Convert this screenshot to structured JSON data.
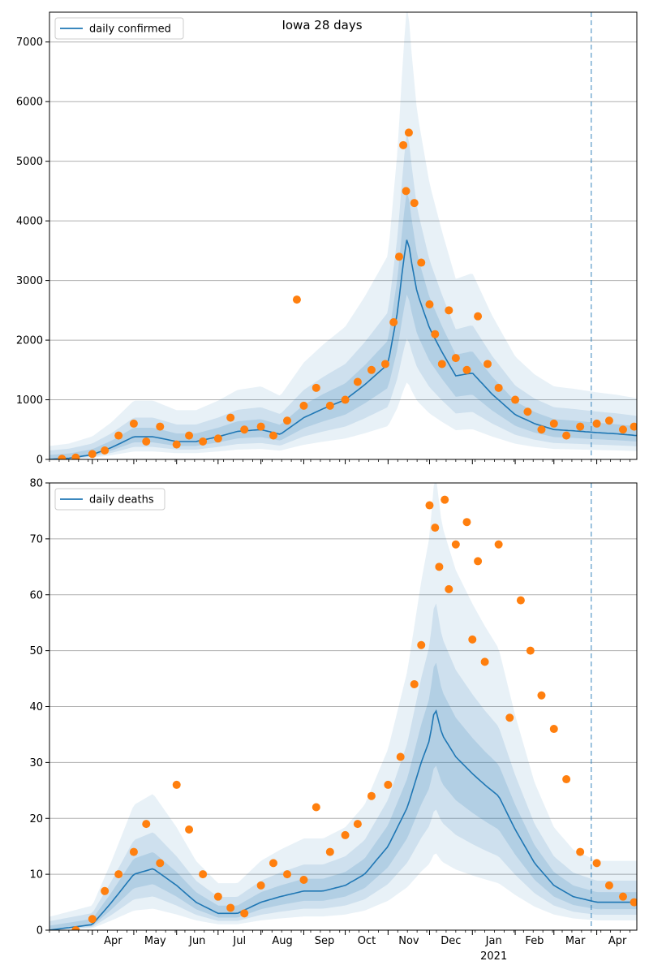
{
  "colors": {
    "line": "#1f77b4",
    "points": "#ff7f0e",
    "band": "#1f77b4",
    "grid": "#b0b0b0",
    "forecast_line": "#1f77b4"
  },
  "chart_data": [
    {
      "type": "line",
      "title": "Iowa 28 days",
      "legend": [
        "daily confirmed"
      ],
      "legend_placement": "top-left",
      "grid": "horizontal",
      "ylim": [
        0,
        7500
      ],
      "yticks": [
        0,
        1000,
        2000,
        3000,
        4000,
        5000,
        6000,
        7000
      ],
      "xlim": [
        "2020-03-01",
        "2021-04-30"
      ],
      "forecast_date": "2021-03-28",
      "series": [
        {
          "name": "daily confirmed",
          "x": [
            "2020-03-01",
            "2020-03-15",
            "2020-04-01",
            "2020-04-15",
            "2020-05-01",
            "2020-05-15",
            "2020-06-01",
            "2020-06-15",
            "2020-07-01",
            "2020-07-15",
            "2020-08-01",
            "2020-08-15",
            "2020-09-01",
            "2020-09-15",
            "2020-10-01",
            "2020-10-15",
            "2020-11-01",
            "2020-11-08",
            "2020-11-12",
            "2020-11-15",
            "2020-11-18",
            "2020-11-22",
            "2020-12-01",
            "2020-12-10",
            "2020-12-20",
            "2021-01-01",
            "2021-01-15",
            "2021-02-01",
            "2021-02-15",
            "2021-03-01",
            "2021-03-15",
            "2021-04-01",
            "2021-04-15",
            "2021-04-30"
          ],
          "values": [
            0,
            20,
            80,
            200,
            380,
            380,
            300,
            300,
            380,
            470,
            500,
            420,
            700,
            850,
            1000,
            1250,
            1600,
            2500,
            3300,
            3750,
            3300,
            2800,
            2200,
            1800,
            1400,
            1450,
            1100,
            750,
            600,
            500,
            480,
            450,
            430,
            400
          ]
        }
      ],
      "observations": {
        "x": [
          "2020-03-10",
          "2020-03-20",
          "2020-04-01",
          "2020-04-10",
          "2020-04-20",
          "2020-05-01",
          "2020-05-10",
          "2020-05-20",
          "2020-06-01",
          "2020-06-10",
          "2020-06-20",
          "2020-07-01",
          "2020-07-10",
          "2020-07-20",
          "2020-08-01",
          "2020-08-10",
          "2020-08-20",
          "2020-08-27",
          "2020-09-01",
          "2020-09-10",
          "2020-09-20",
          "2020-10-01",
          "2020-10-10",
          "2020-10-20",
          "2020-10-30",
          "2020-11-05",
          "2020-11-09",
          "2020-11-12",
          "2020-11-14",
          "2020-11-16",
          "2020-11-20",
          "2020-11-25",
          "2020-12-01",
          "2020-12-05",
          "2020-12-10",
          "2020-12-15",
          "2020-12-20",
          "2020-12-28",
          "2021-01-05",
          "2021-01-12",
          "2021-01-20",
          "2021-02-01",
          "2021-02-10",
          "2021-02-20",
          "2021-03-01",
          "2021-03-10",
          "2021-03-20",
          "2021-04-01",
          "2021-04-10",
          "2021-04-20",
          "2021-04-28"
        ],
        "values": [
          10,
          30,
          90,
          150,
          400,
          600,
          300,
          550,
          250,
          400,
          300,
          350,
          700,
          500,
          550,
          400,
          650,
          2680,
          900,
          1200,
          900,
          1000,
          1300,
          1500,
          1600,
          2300,
          3400,
          5270,
          4500,
          5480,
          4300,
          3300,
          2600,
          2100,
          1600,
          2500,
          1700,
          1500,
          2400,
          1600,
          1200,
          1000,
          800,
          500,
          600,
          400,
          550,
          600,
          650,
          500,
          550
        ]
      }
    },
    {
      "type": "line",
      "title": "",
      "legend": [
        "daily deaths"
      ],
      "legend_placement": "top-left",
      "grid": "horizontal",
      "ylim": [
        0,
        80
      ],
      "yticks": [
        0,
        10,
        20,
        30,
        40,
        50,
        60,
        70,
        80
      ],
      "xlim": [
        "2020-03-01",
        "2021-04-30"
      ],
      "x_tick_labels": [
        "Apr",
        "May",
        "Jun",
        "Jul",
        "Aug",
        "Sep",
        "Oct",
        "Nov",
        "Dec",
        "Jan",
        "Feb",
        "Mar",
        "Apr"
      ],
      "x_year_label": "2021",
      "forecast_date": "2021-03-28",
      "series": [
        {
          "name": "daily deaths",
          "x": [
            "2020-03-01",
            "2020-04-01",
            "2020-04-15",
            "2020-05-01",
            "2020-05-15",
            "2020-06-01",
            "2020-06-15",
            "2020-07-01",
            "2020-07-15",
            "2020-08-01",
            "2020-08-15",
            "2020-09-01",
            "2020-09-15",
            "2020-10-01",
            "2020-10-15",
            "2020-11-01",
            "2020-11-15",
            "2020-11-25",
            "2020-12-01",
            "2020-12-05",
            "2020-12-10",
            "2020-12-20",
            "2021-01-01",
            "2021-01-10",
            "2021-01-20",
            "2021-02-01",
            "2021-02-15",
            "2021-03-01",
            "2021-03-15",
            "2021-04-01",
            "2021-04-15",
            "2021-04-30"
          ],
          "values": [
            0,
            1,
            5,
            10,
            11,
            8,
            5,
            3,
            3,
            5,
            6,
            7,
            7,
            8,
            10,
            15,
            22,
            30,
            34,
            40,
            35,
            31,
            28,
            26,
            24,
            18,
            12,
            8,
            6,
            5,
            5,
            5
          ]
        }
      ],
      "observations": {
        "x": [
          "2020-03-20",
          "2020-04-01",
          "2020-04-10",
          "2020-04-20",
          "2020-05-01",
          "2020-05-10",
          "2020-05-20",
          "2020-06-01",
          "2020-06-10",
          "2020-06-20",
          "2020-07-01",
          "2020-07-10",
          "2020-07-20",
          "2020-08-01",
          "2020-08-10",
          "2020-08-20",
          "2020-09-01",
          "2020-09-10",
          "2020-09-20",
          "2020-10-01",
          "2020-10-10",
          "2020-10-20",
          "2020-11-01",
          "2020-11-10",
          "2020-11-20",
          "2020-11-25",
          "2020-12-01",
          "2020-12-05",
          "2020-12-08",
          "2020-12-12",
          "2020-12-15",
          "2020-12-20",
          "2020-12-28",
          "2021-01-01",
          "2021-01-05",
          "2021-01-10",
          "2021-01-20",
          "2021-01-28",
          "2021-02-05",
          "2021-02-12",
          "2021-02-20",
          "2021-03-01",
          "2021-03-10",
          "2021-03-20",
          "2021-04-01",
          "2021-04-10",
          "2021-04-20",
          "2021-04-28"
        ],
        "values": [
          0,
          2,
          7,
          10,
          14,
          19,
          12,
          26,
          18,
          10,
          6,
          4,
          3,
          8,
          12,
          10,
          9,
          22,
          14,
          17,
          19,
          24,
          26,
          31,
          44,
          51,
          76,
          72,
          65,
          77,
          61,
          69,
          73,
          52,
          66,
          48,
          69,
          38,
          59,
          50,
          42,
          36,
          27,
          14,
          12,
          8,
          6,
          5
        ]
      }
    }
  ],
  "legend": {
    "top": "daily confirmed",
    "bottom": "daily deaths"
  },
  "title": "Iowa 28 days"
}
